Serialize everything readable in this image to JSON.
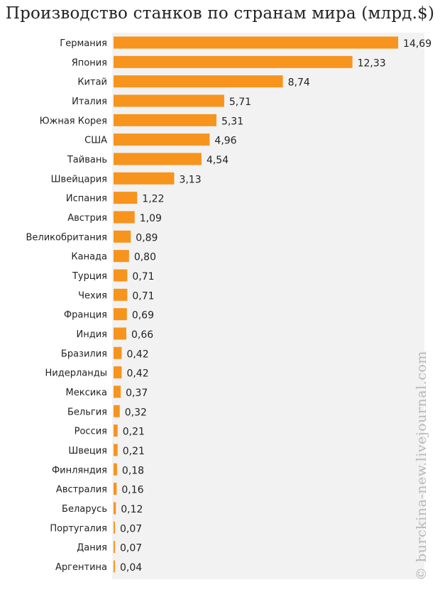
{
  "chart_data": {
    "type": "bar",
    "orientation": "horizontal",
    "title": "Производство станков по странам мира (млрд.$)",
    "xlabel": "",
    "ylabel": "",
    "xlim": [
      0,
      15.2
    ],
    "grid": false,
    "legend": "none",
    "bar_color": "#f7941d",
    "background_color": "#f2f2f2",
    "categories": [
      "Германия",
      "Япония",
      "Китай",
      "Италия",
      "Южная Корея",
      "США",
      "Тайвань",
      "Швейцария",
      "Испания",
      "Австрия",
      "Великобритания",
      "Канада",
      "Турция",
      "Чехия",
      "Франция",
      "Индия",
      "Бразилия",
      "Нидерланды",
      "Мексика",
      "Бельгия",
      "Россия",
      "Швеция",
      "Финляндия",
      "Австралия",
      "Беларусь",
      "Португалия",
      "Дания",
      "Аргентина"
    ],
    "values": [
      14.69,
      12.33,
      8.74,
      5.71,
      5.31,
      4.96,
      4.54,
      3.13,
      1.22,
      1.09,
      0.89,
      0.8,
      0.71,
      0.71,
      0.69,
      0.66,
      0.42,
      0.42,
      0.37,
      0.32,
      0.21,
      0.21,
      0.18,
      0.16,
      0.12,
      0.07,
      0.07,
      0.04
    ],
    "value_labels": [
      "14,69",
      "12,33",
      "8,74",
      "5,71",
      "5,31",
      "4,96",
      "4,54",
      "3,13",
      "1,22",
      "1,09",
      "0,89",
      "0,80",
      "0,71",
      "0,71",
      "0,69",
      "0,66",
      "0,42",
      "0,42",
      "0,37",
      "0,32",
      "0,21",
      "0,21",
      "0,18",
      "0,16",
      "0,12",
      "0,07",
      "0,07",
      "0,04"
    ],
    "watermark": "© burckina-new.livejournal.com"
  }
}
